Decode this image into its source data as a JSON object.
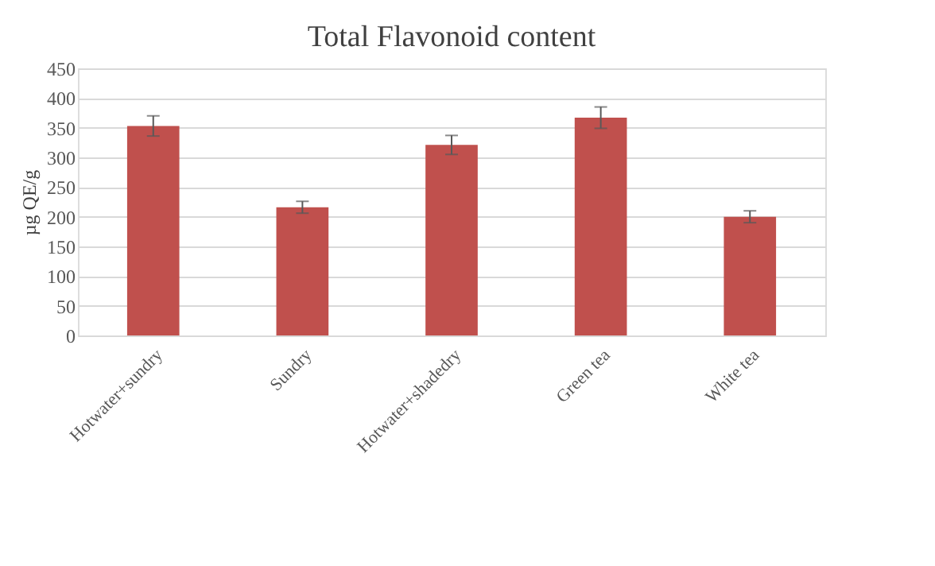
{
  "chart_data": {
    "type": "bar",
    "title": "Total Flavonoid content",
    "ylabel": "µg QE/g",
    "categories": [
      "Hotwater+sundry",
      "Sundry",
      "Hotwater+shadedry",
      "Green tea",
      "White tea"
    ],
    "values": [
      353,
      216,
      321,
      367,
      200
    ],
    "errors": [
      17,
      10,
      16,
      18,
      10
    ],
    "color": "#c0504d",
    "ylim": [
      0,
      450
    ],
    "yticks": [
      0,
      50,
      100,
      150,
      200,
      250,
      300,
      350,
      400,
      450
    ],
    "grid": "y"
  }
}
